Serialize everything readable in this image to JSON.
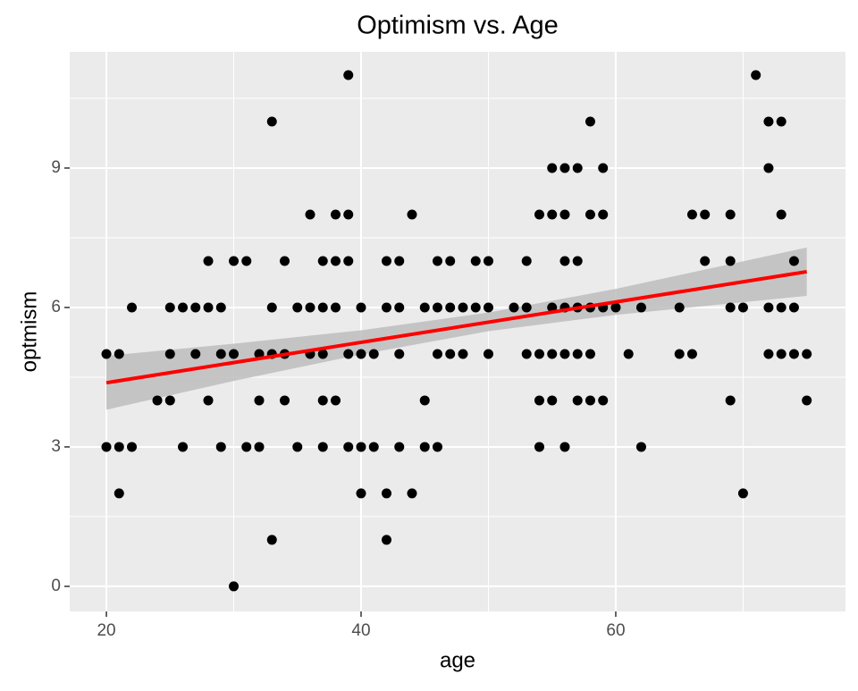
{
  "chart_data": {
    "type": "scatter",
    "title": "Optimism vs. Age",
    "x_label": "age",
    "y_label": "optmism",
    "x": [
      20,
      20,
      21,
      21,
      21,
      22,
      22,
      24,
      25,
      25,
      25,
      26,
      26,
      27,
      27,
      28,
      28,
      28,
      29,
      29,
      29,
      30,
      30,
      30,
      31,
      31,
      32,
      32,
      32,
      33,
      33,
      33,
      33,
      34,
      34,
      34,
      35,
      35,
      36,
      36,
      36,
      37,
      37,
      37,
      37,
      37,
      38,
      38,
      38,
      38,
      39,
      39,
      39,
      39,
      39,
      40,
      40,
      40,
      40,
      41,
      41,
      42,
      42,
      42,
      42,
      43,
      43,
      43,
      43,
      44,
      44,
      45,
      45,
      45,
      46,
      46,
      46,
      46,
      47,
      47,
      47,
      48,
      48,
      49,
      49,
      50,
      50,
      50,
      52,
      53,
      53,
      53,
      54,
      54,
      54,
      54,
      55,
      55,
      55,
      55,
      55,
      56,
      56,
      56,
      56,
      56,
      56,
      57,
      57,
      57,
      57,
      57,
      58,
      58,
      58,
      58,
      58,
      59,
      59,
      59,
      59,
      60,
      61,
      62,
      62,
      65,
      65,
      66,
      66,
      67,
      67,
      69,
      69,
      69,
      69,
      70,
      70,
      71,
      72,
      72,
      72,
      72,
      73,
      73,
      73,
      73,
      74,
      74,
      74,
      75,
      75
    ],
    "y": [
      5,
      3,
      5,
      3,
      2,
      6,
      3,
      4,
      6,
      5,
      4,
      6,
      3,
      6,
      5,
      7,
      6,
      4,
      6,
      5,
      3,
      7,
      5,
      0,
      7,
      3,
      5,
      4,
      3,
      10,
      6,
      5,
      1,
      7,
      5,
      4,
      6,
      3,
      8,
      6,
      5,
      7,
      6,
      5,
      4,
      3,
      8,
      7,
      6,
      4,
      11,
      8,
      7,
      5,
      3,
      6,
      5,
      3,
      2,
      5,
      3,
      7,
      6,
      2,
      1,
      7,
      6,
      5,
      3,
      8,
      2,
      6,
      4,
      3,
      7,
      6,
      5,
      3,
      7,
      6,
      5,
      6,
      5,
      7,
      6,
      7,
      6,
      5,
      6,
      7,
      6,
      5,
      8,
      5,
      4,
      3,
      9,
      8,
      6,
      5,
      4,
      9,
      8,
      7,
      6,
      5,
      3,
      9,
      7,
      6,
      5,
      4,
      10,
      8,
      6,
      5,
      4,
      9,
      8,
      6,
      4,
      6,
      5,
      6,
      3,
      6,
      5,
      8,
      5,
      8,
      7,
      8,
      7,
      6,
      4,
      6,
      2,
      11,
      10,
      9,
      6,
      5,
      10,
      8,
      6,
      5,
      7,
      6,
      5,
      5,
      4
    ],
    "color": "#000000",
    "fit": {
      "x": [
        20,
        75
      ],
      "y": [
        4.38,
        6.77
      ],
      "color": "#ff0000"
    },
    "band": {
      "x": [
        20,
        30,
        40,
        50,
        60,
        75
      ],
      "upper": [
        4.96,
        5.22,
        5.51,
        5.89,
        6.4,
        7.29
      ],
      "lower": [
        3.8,
        4.42,
        4.99,
        5.49,
        5.84,
        6.25
      ],
      "color": "#bdbdbd"
    },
    "xlim": [
      17.12,
      78.04
    ],
    "ylim": [
      -0.54,
      11.5
    ],
    "xticks": [
      20,
      40,
      60
    ],
    "yticks": [
      0,
      3,
      6,
      9
    ],
    "x_minor_grid": [
      30,
      50,
      70
    ],
    "y_minor_grid": [
      1.5,
      4.5,
      7.5,
      10.5
    ],
    "grid": true
  }
}
